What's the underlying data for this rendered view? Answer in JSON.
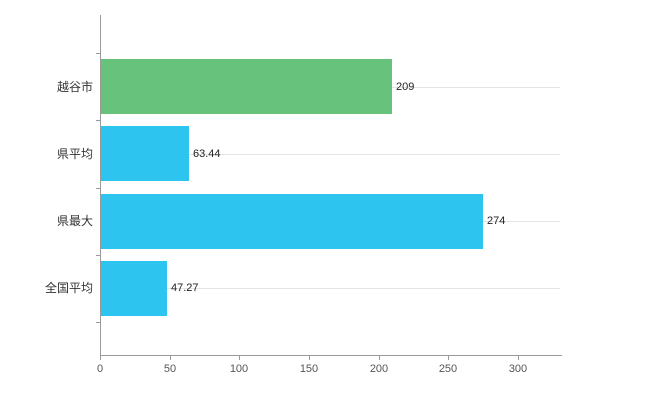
{
  "page": {
    "background": "#ffffff"
  },
  "chart_data": {
    "type": "bar",
    "orientation": "horizontal",
    "title": "",
    "xlabel": "",
    "ylabel": "",
    "categories": [
      "越谷市",
      "県平均",
      "県最大",
      "全国平均"
    ],
    "values": [
      209,
      63.44,
      274,
      47.27
    ],
    "value_labels": [
      "209",
      "63.44",
      "274",
      "47.27"
    ],
    "bar_colors": [
      "#67c27c",
      "#2ec4f0",
      "#2ec4f0",
      "#2ec4f0"
    ],
    "xticks": [
      0,
      50,
      100,
      150,
      200,
      250,
      300
    ],
    "xtick_labels": [
      "0",
      "50",
      "100",
      "150",
      "200",
      "250",
      "300"
    ],
    "xlim": [
      0,
      330
    ],
    "grid": true,
    "gridline_color": "#e4e4e4",
    "axis_color": "#9a9a9a",
    "legend": "none"
  }
}
